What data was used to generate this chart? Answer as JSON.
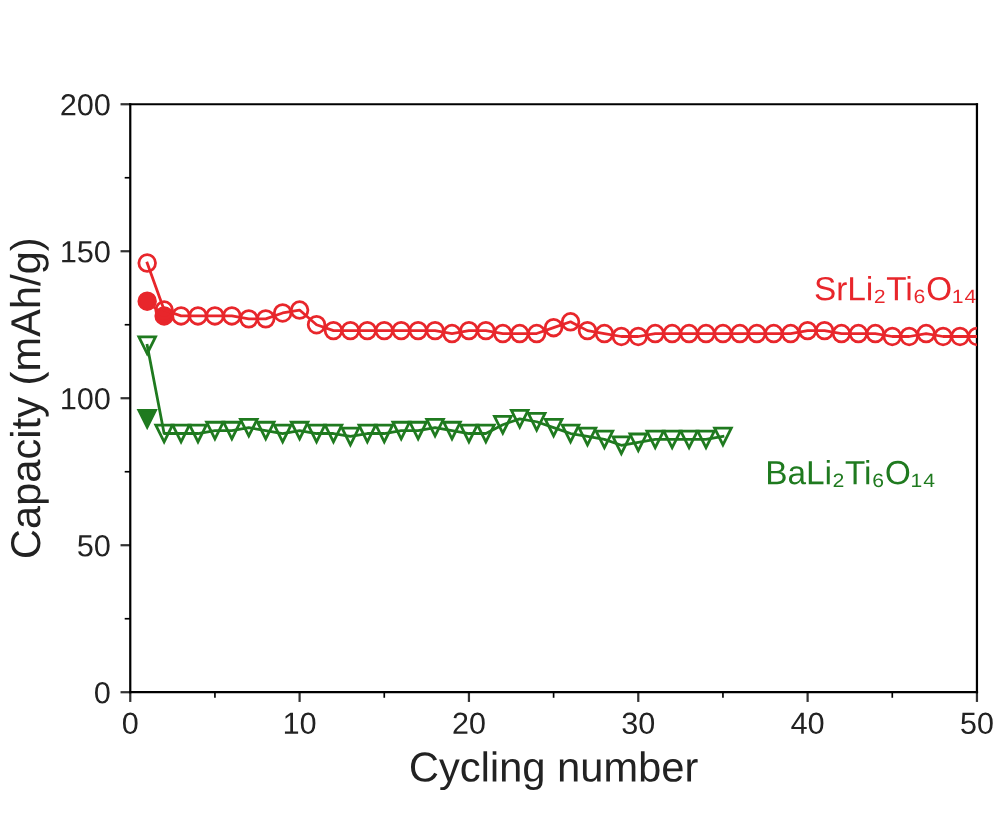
{
  "chart_data": {
    "type": "line",
    "xlabel": "Cycling number",
    "ylabel": "Capacity (mAh/g)",
    "xlim": [
      0,
      50
    ],
    "xticks": [
      0,
      10,
      20,
      30,
      40,
      50
    ],
    "ylim": [
      0,
      200
    ],
    "yticks": [
      0,
      50,
      100,
      150,
      200
    ],
    "grid": false,
    "line_style": "solid",
    "series": [
      {
        "name": "SrLi₂Ti₆O₁₄",
        "color": "#e8262b",
        "marker": "circle",
        "x": [
          1,
          2,
          3,
          4,
          5,
          6,
          7,
          8,
          9,
          10,
          11,
          12,
          13,
          14,
          15,
          16,
          17,
          18,
          19,
          20,
          21,
          22,
          23,
          24,
          25,
          26,
          27,
          28,
          29,
          30,
          31,
          32,
          33,
          34,
          35,
          36,
          37,
          38,
          39,
          40,
          41,
          42,
          43,
          44,
          45,
          46,
          47,
          48,
          49,
          50
        ],
        "values": [
          146,
          130,
          128,
          128,
          128,
          128,
          127,
          127,
          129,
          130,
          125,
          123,
          123,
          123,
          123,
          123,
          123,
          123,
          122,
          123,
          123,
          122,
          122,
          122,
          124,
          126,
          123,
          122,
          121,
          121,
          122,
          122,
          122,
          122,
          122,
          122,
          122,
          122,
          122,
          123,
          123,
          122,
          122,
          122,
          121,
          121,
          122,
          121,
          121,
          121
        ]
      },
      {
        "color": "#e8262b",
        "marker": "circle",
        "x": [
          1,
          2
        ],
        "values": [
          133,
          128
        ]
      },
      {
        "name": "BaLi₂Ti₆O₁₄",
        "color": "#1f7a1f",
        "marker": "triangle",
        "x": [
          1,
          2,
          3,
          4,
          5,
          6,
          7,
          8,
          9,
          10,
          11,
          12,
          13,
          14,
          15,
          16,
          17,
          18,
          19,
          20,
          21,
          22,
          23,
          24,
          25,
          26,
          27,
          28,
          29,
          30,
          31,
          32,
          33,
          34,
          35
        ],
        "values": [
          118,
          88,
          88,
          88,
          89,
          89,
          90,
          89,
          88,
          89,
          88,
          88,
          87,
          88,
          88,
          89,
          89,
          90,
          89,
          88,
          88,
          91,
          93,
          92,
          90,
          88,
          87,
          86,
          84,
          85,
          86,
          86,
          86,
          86,
          87
        ]
      },
      {
        "color": "#1f7a1f",
        "marker": "triangle",
        "x": [
          1
        ],
        "values": [
          93
        ]
      }
    ]
  }
}
